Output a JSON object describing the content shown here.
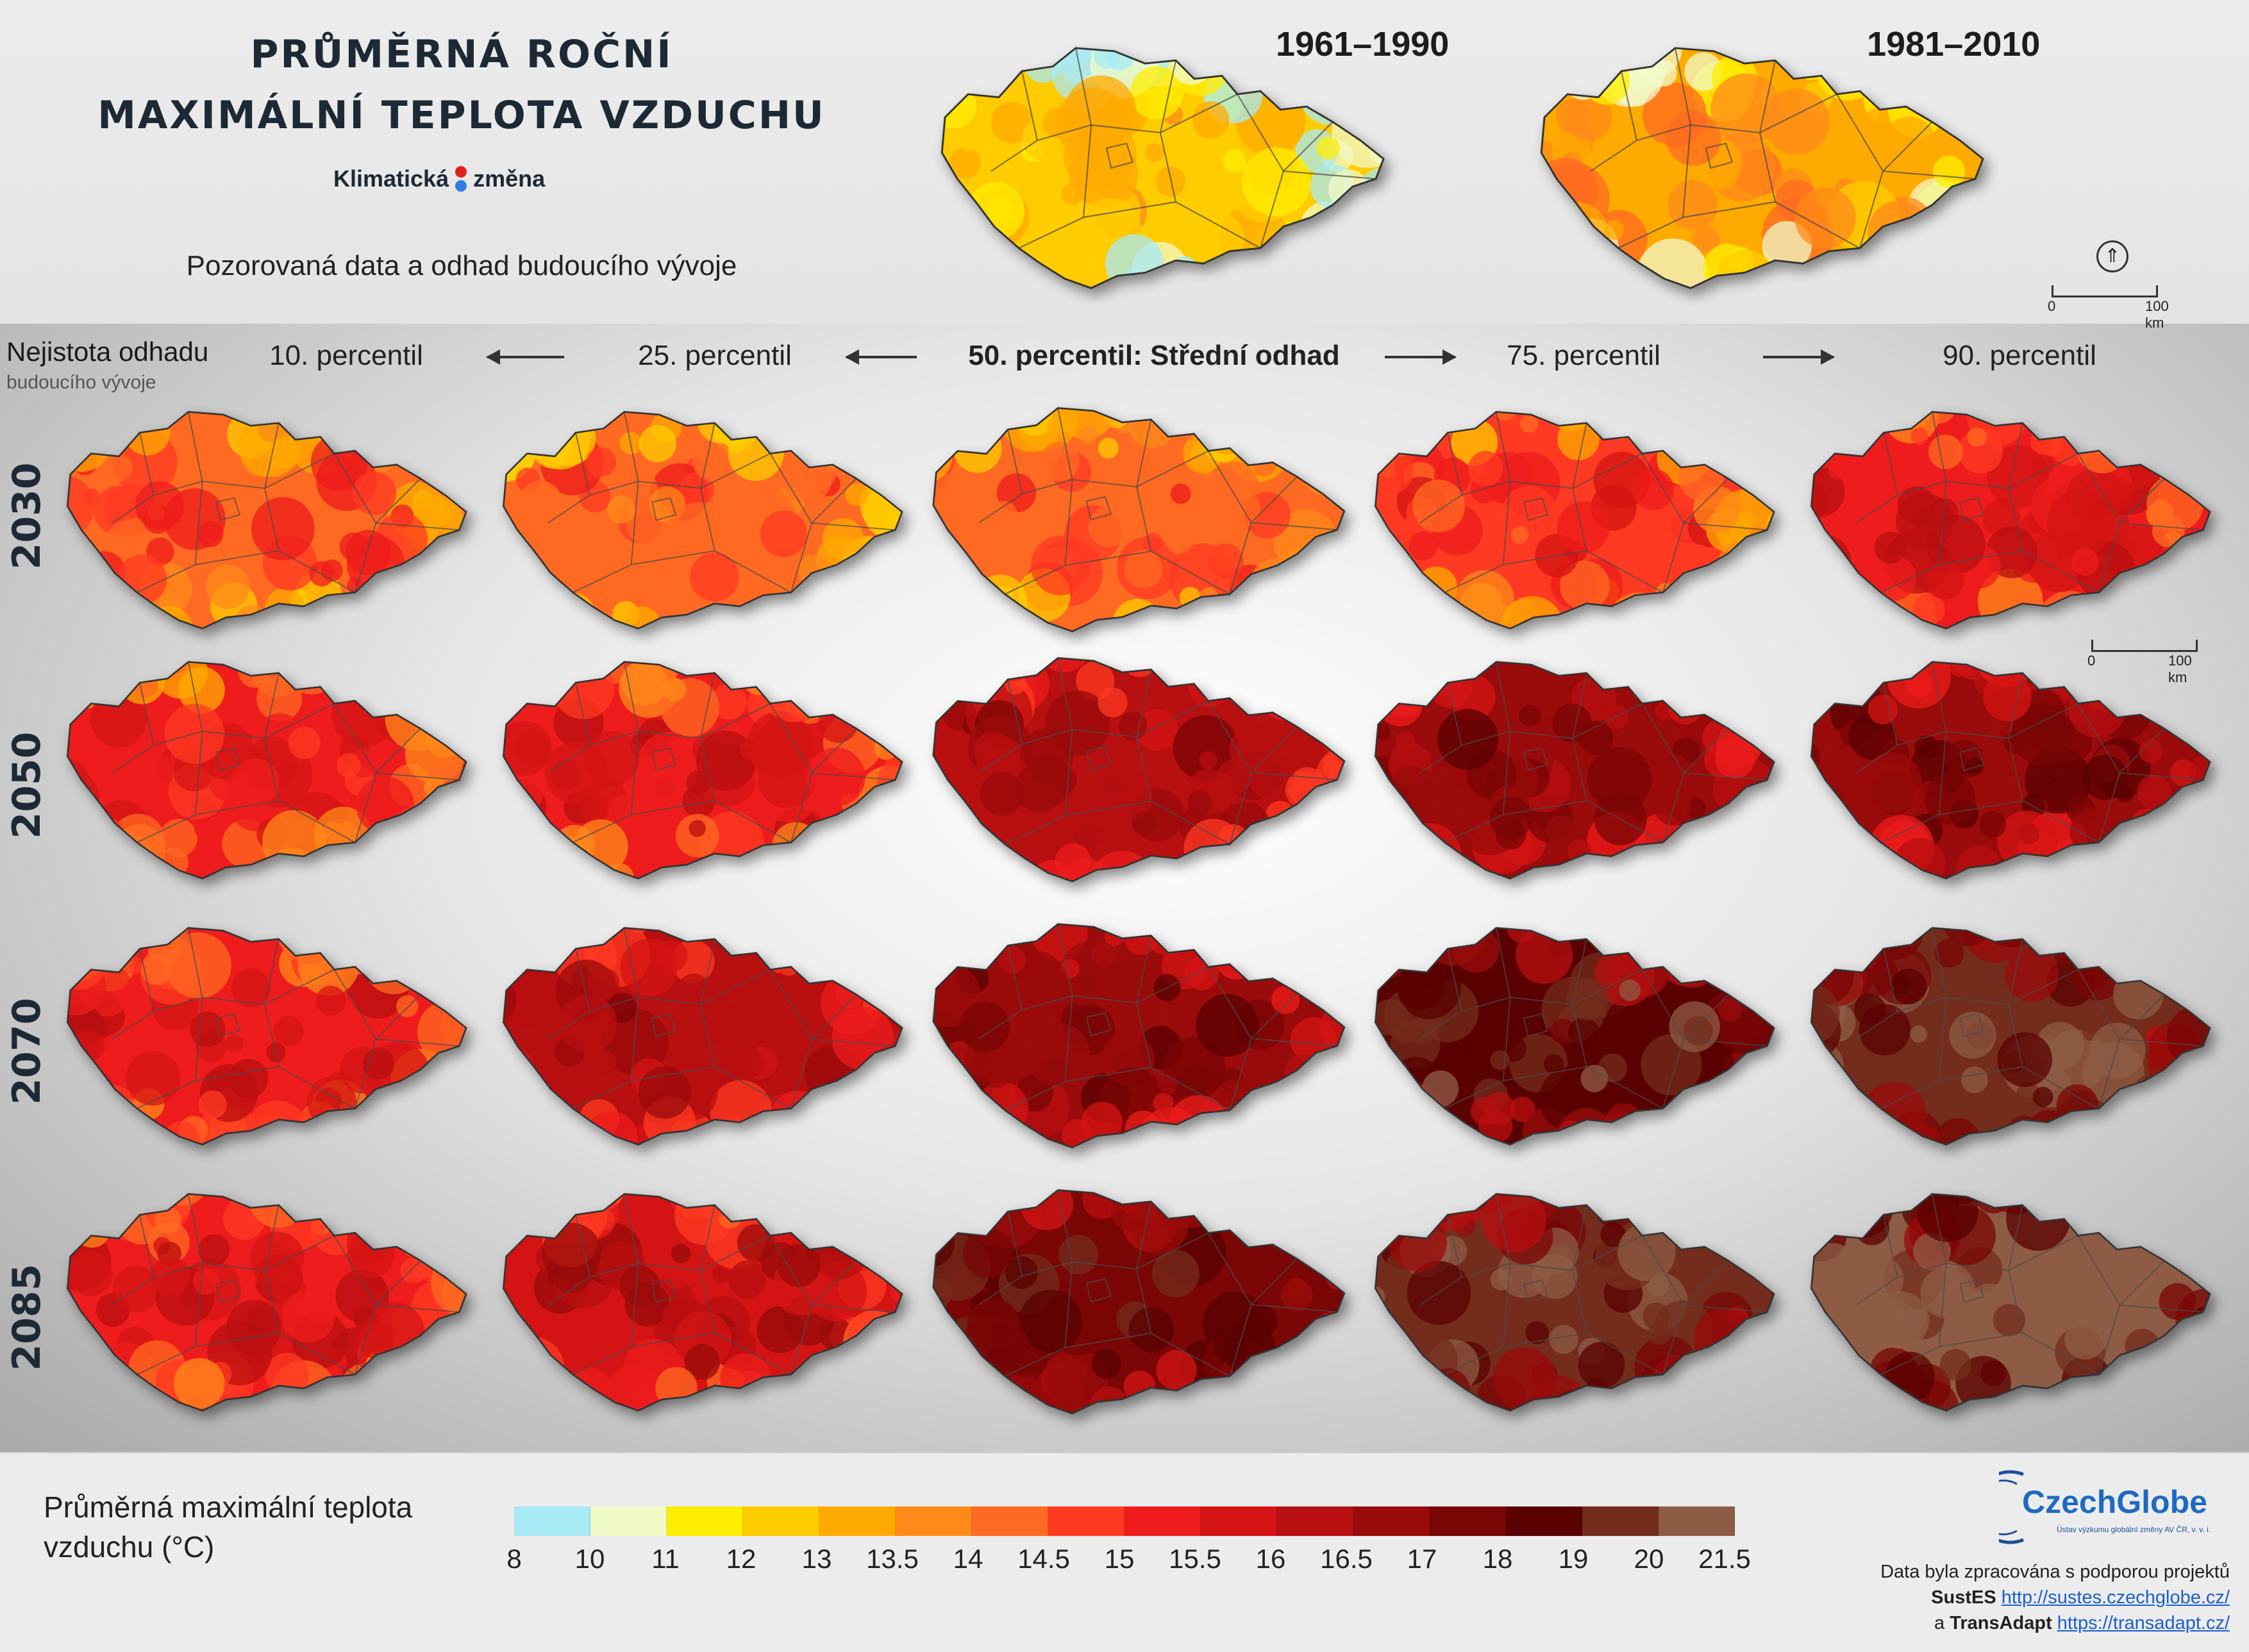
{
  "header": {
    "title_line1": "PRŮMĚRNÁ ROČNÍ",
    "title_line2": "MAXIMÁLNÍ TEPLOTA VZDUCHU",
    "brand_left": "Klimatická",
    "brand_right": "změna",
    "subtitle": "Pozorovaná data a odhad budoucího vývoje",
    "periods": [
      "1961–1990",
      "1981–2010"
    ],
    "scale": {
      "start": "0",
      "end": "100 km"
    }
  },
  "uncertainty": {
    "title": "Nejistota odhadu",
    "subtitle": "budoucího vývoje"
  },
  "columns": [
    {
      "label": "10. percentil"
    },
    {
      "label": "25. percentil"
    },
    {
      "label": "50. percentil: Střední odhad"
    },
    {
      "label": "75. percentil"
    },
    {
      "label": "90. percentil"
    }
  ],
  "rows": [
    {
      "year": "2030",
      "warmth": [
        0.42,
        0.38,
        0.4,
        0.45,
        0.55
      ]
    },
    {
      "year": "2050",
      "warmth": [
        0.5,
        0.56,
        0.66,
        0.72,
        0.76
      ]
    },
    {
      "year": "2070",
      "warmth": [
        0.55,
        0.64,
        0.72,
        0.86,
        0.9
      ]
    },
    {
      "year": "2085",
      "warmth": [
        0.56,
        0.62,
        0.82,
        0.9,
        0.97
      ]
    }
  ],
  "observed_warmth": [
    0.18,
    0.26
  ],
  "legend": {
    "title": "Průměrná maximální teplota vzduchu (°C)",
    "colors": [
      "#a8eaf5",
      "#f0fac8",
      "#ffee00",
      "#ffcc00",
      "#ffaa00",
      "#ff8a1a",
      "#ff6a22",
      "#ff3a22",
      "#ee1c1c",
      "#d41414",
      "#b80f10",
      "#9a0b0b",
      "#7a0606",
      "#5a0202",
      "#742c1c",
      "#8e5c45"
    ],
    "ticks": [
      "8",
      "10",
      "11",
      "12",
      "13",
      "13.5",
      "14",
      "14.5",
      "15",
      "15.5",
      "16",
      "16.5",
      "17",
      "18",
      "19",
      "20",
      "21.5"
    ]
  },
  "footer": {
    "logo_text": "CzechGlobe",
    "logo_sub": "Ústav výzkumu globální změny AV ČR, v. v. i.",
    "credit_line1": "Data byla zpracována s podporou projektů",
    "project1_name": "SustES",
    "project1_url": "http://sustes.czechglobe.cz/",
    "credit_and": "a",
    "project2_name": "TransAdapt",
    "project2_url": "https://transadapt.cz/"
  }
}
